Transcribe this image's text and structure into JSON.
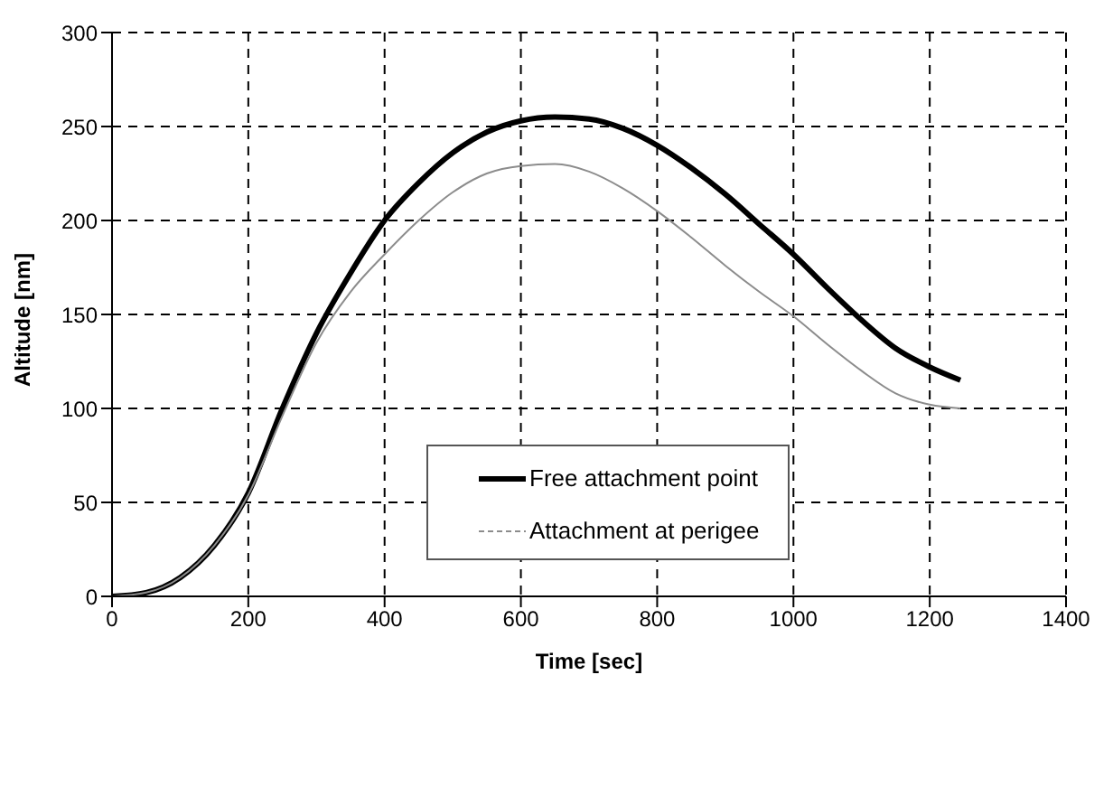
{
  "chart_data": {
    "type": "line",
    "xlabel": "Time [sec]",
    "ylabel": "Altitude [nm]",
    "x": [
      0,
      50,
      100,
      150,
      200,
      250,
      300,
      350,
      400,
      450,
      500,
      550,
      600,
      650,
      700,
      750,
      800,
      850,
      900,
      950,
      1000,
      1050,
      1100,
      1150,
      1200,
      1245
    ],
    "series": [
      {
        "name": "Free attachment point",
        "color": "#000000",
        "values": [
          0,
          2,
          10,
          27,
          55,
          100,
          140,
          172,
          200,
          220,
          236,
          247,
          253,
          255,
          254,
          249,
          240,
          228,
          214,
          198,
          182,
          164,
          147,
          132,
          122,
          115
        ]
      },
      {
        "name": "Attachment at perigee",
        "color": "#8c8c8c",
        "values": [
          0,
          2,
          10,
          27,
          54,
          96,
          135,
          162,
          182,
          200,
          215,
          225,
          229,
          230,
          226,
          217,
          205,
          191,
          176,
          162,
          149,
          134,
          120,
          108,
          102,
          100
        ]
      }
    ],
    "xlim": [
      0,
      1400
    ],
    "xticks": [
      0,
      200,
      400,
      600,
      800,
      1000,
      1200,
      1400
    ],
    "ylim": [
      0,
      300
    ],
    "yticks": [
      0,
      50,
      100,
      150,
      200,
      250,
      300
    ],
    "grid": true,
    "legend": "center",
    "marker": "none"
  }
}
